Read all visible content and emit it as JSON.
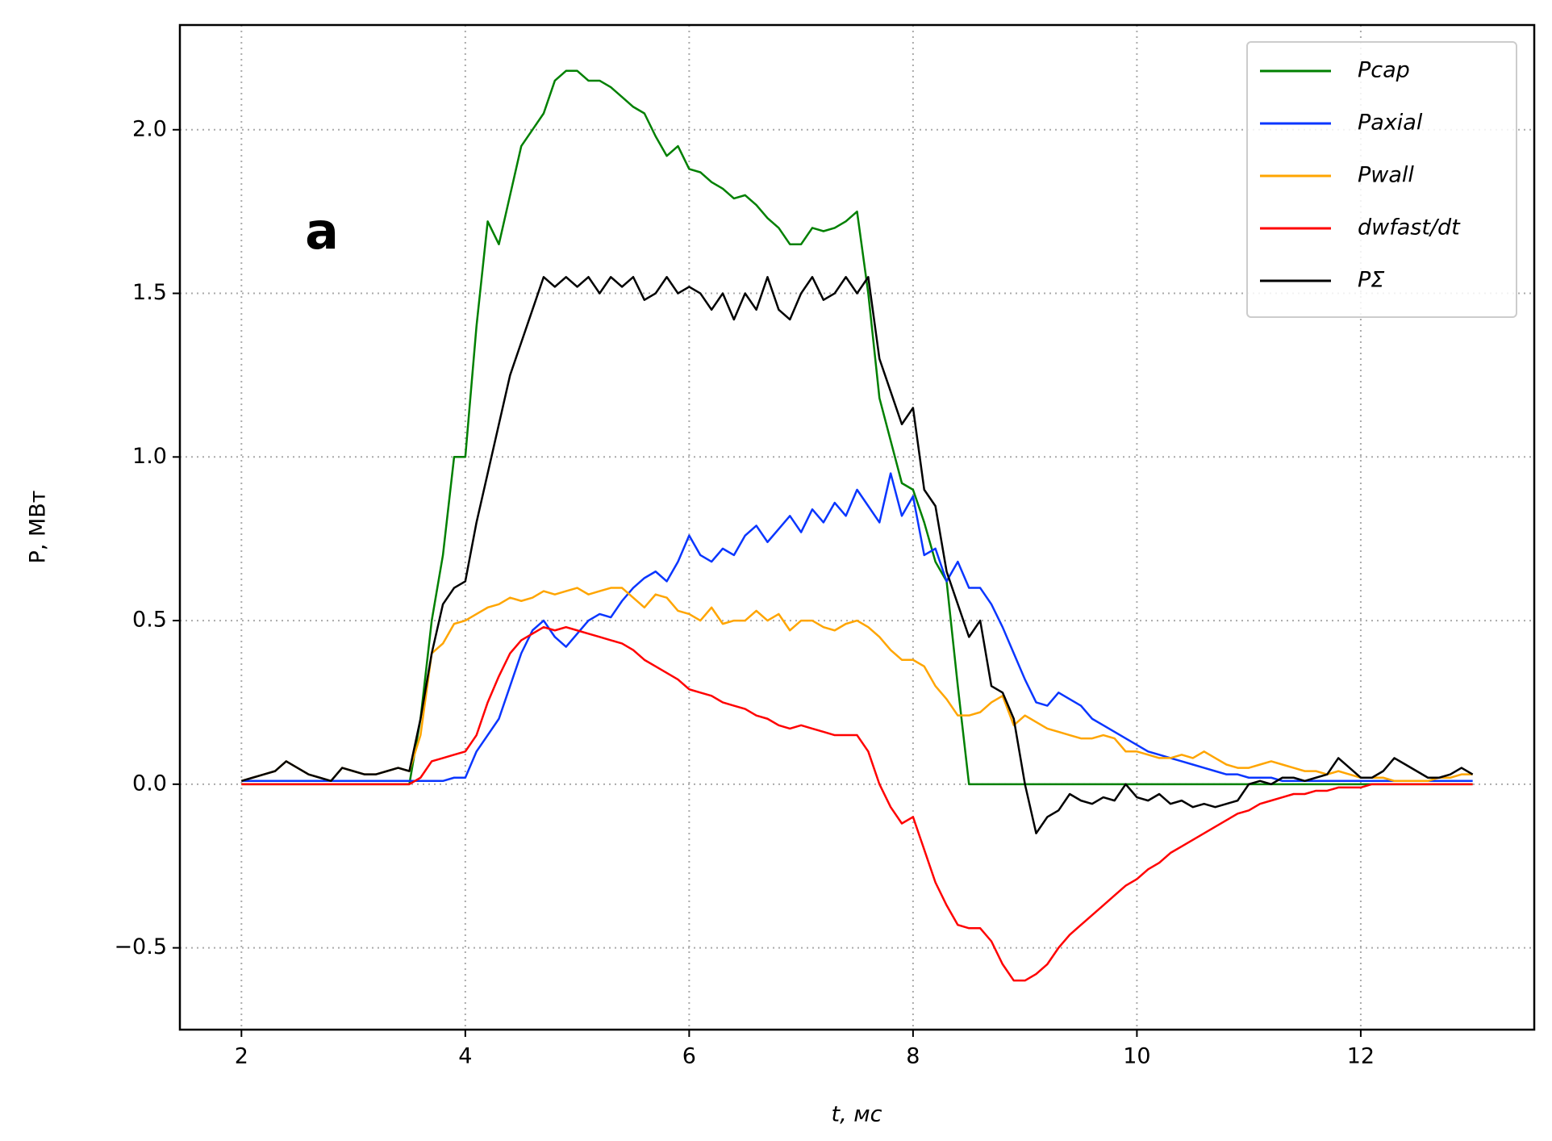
{
  "chart_data": {
    "type": "line",
    "annotation": "a",
    "xlabel": "t, мс",
    "ylabel": "P, МВт",
    "xlim": [
      1.45,
      13.55
    ],
    "ylim": [
      -0.75,
      2.32
    ],
    "xticks": [
      2,
      4,
      6,
      8,
      10,
      12
    ],
    "yticks": [
      {
        "value": -0.5,
        "label": "−0.5"
      },
      {
        "value": 0,
        "label": "0.0"
      },
      {
        "value": 0.5,
        "label": "0.5"
      },
      {
        "value": 1,
        "label": "1.0"
      },
      {
        "value": 1.5,
        "label": "1.5"
      },
      {
        "value": 2,
        "label": "2.0"
      }
    ],
    "grid": true,
    "legend": "upper right",
    "x": [
      2.0,
      2.1,
      2.2,
      2.3,
      2.4,
      2.5,
      2.6,
      2.7,
      2.8,
      2.9,
      3.0,
      3.1,
      3.2,
      3.3,
      3.4,
      3.5,
      3.6,
      3.7,
      3.8,
      3.9,
      4.0,
      4.1,
      4.2,
      4.3,
      4.4,
      4.5,
      4.6,
      4.7,
      4.8,
      4.9,
      5.0,
      5.1,
      5.2,
      5.3,
      5.4,
      5.5,
      5.6,
      5.7,
      5.8,
      5.9,
      6.0,
      6.1,
      6.2,
      6.3,
      6.4,
      6.5,
      6.6,
      6.7,
      6.8,
      6.9,
      7.0,
      7.1,
      7.2,
      7.3,
      7.4,
      7.5,
      7.6,
      7.7,
      7.8,
      7.9,
      8.0,
      8.1,
      8.2,
      8.3,
      8.4,
      8.5,
      8.6,
      8.7,
      8.8,
      8.9,
      9.0,
      9.1,
      9.2,
      9.3,
      9.4,
      9.5,
      9.6,
      9.7,
      9.8,
      9.9,
      10.0,
      10.1,
      10.2,
      10.3,
      10.4,
      10.5,
      10.6,
      10.7,
      10.8,
      10.9,
      11.0,
      11.1,
      11.2,
      11.3,
      11.4,
      11.5,
      11.6,
      11.7,
      11.8,
      11.9,
      12.0,
      12.1,
      12.2,
      12.3,
      12.4,
      12.5,
      12.6,
      12.7,
      12.8,
      12.9,
      13.0
    ],
    "series": [
      {
        "name": "Pcap",
        "color": "#008000",
        "values": [
          0,
          0,
          0,
          0,
          0,
          0,
          0,
          0,
          0,
          0,
          0,
          0,
          0,
          0,
          0,
          0,
          0.2,
          0.5,
          0.7,
          1.0,
          1.0,
          1.4,
          1.72,
          1.65,
          1.8,
          1.95,
          2.0,
          2.05,
          2.15,
          2.18,
          2.18,
          2.15,
          2.15,
          2.13,
          2.1,
          2.07,
          2.05,
          1.98,
          1.92,
          1.95,
          1.88,
          1.87,
          1.84,
          1.82,
          1.79,
          1.8,
          1.77,
          1.73,
          1.7,
          1.65,
          1.65,
          1.7,
          1.69,
          1.7,
          1.72,
          1.75,
          1.5,
          1.18,
          1.05,
          0.92,
          0.9,
          0.8,
          0.68,
          0.62,
          0.3,
          0,
          0,
          0,
          0,
          0,
          0,
          0,
          0,
          0,
          0,
          0,
          0,
          0,
          0,
          0,
          0,
          0,
          0,
          0,
          0,
          0,
          0,
          0,
          0,
          0,
          0,
          0,
          0,
          0,
          0,
          0,
          0,
          0,
          0,
          0,
          0,
          0,
          0,
          0,
          0,
          0,
          0,
          0,
          0,
          0,
          0
        ]
      },
      {
        "name": "Paxial",
        "color": "#0a36ff",
        "values": [
          0.01,
          0.01,
          0.01,
          0.01,
          0.01,
          0.01,
          0.01,
          0.01,
          0.01,
          0.01,
          0.01,
          0.01,
          0.01,
          0.01,
          0.01,
          0.01,
          0.01,
          0.01,
          0.01,
          0.02,
          0.02,
          0.1,
          0.15,
          0.2,
          0.3,
          0.4,
          0.47,
          0.5,
          0.45,
          0.42,
          0.46,
          0.5,
          0.52,
          0.51,
          0.56,
          0.6,
          0.63,
          0.65,
          0.62,
          0.68,
          0.76,
          0.7,
          0.68,
          0.72,
          0.7,
          0.76,
          0.79,
          0.74,
          0.78,
          0.82,
          0.77,
          0.84,
          0.8,
          0.86,
          0.82,
          0.9,
          0.85,
          0.8,
          0.95,
          0.82,
          0.88,
          0.7,
          0.72,
          0.62,
          0.68,
          0.6,
          0.6,
          0.55,
          0.48,
          0.4,
          0.32,
          0.25,
          0.24,
          0.28,
          0.26,
          0.24,
          0.2,
          0.18,
          0.16,
          0.14,
          0.12,
          0.1,
          0.09,
          0.08,
          0.07,
          0.06,
          0.05,
          0.04,
          0.03,
          0.03,
          0.02,
          0.02,
          0.02,
          0.01,
          0.01,
          0.01,
          0.01,
          0.01,
          0.01,
          0.01,
          0.01,
          0.01,
          0.01,
          0.01,
          0.01,
          0.01,
          0.01,
          0.01,
          0.01,
          0.01,
          0.01
        ]
      },
      {
        "name": "Pwall",
        "color": "#ffa500",
        "values": [
          0.01,
          0.02,
          0.03,
          0.04,
          0.07,
          0.05,
          0.03,
          0.02,
          0.01,
          0.05,
          0.04,
          0.03,
          0.03,
          0.04,
          0.05,
          0.04,
          0.15,
          0.4,
          0.43,
          0.49,
          0.5,
          0.52,
          0.54,
          0.55,
          0.57,
          0.56,
          0.57,
          0.59,
          0.58,
          0.59,
          0.6,
          0.58,
          0.59,
          0.6,
          0.6,
          0.57,
          0.54,
          0.58,
          0.57,
          0.53,
          0.52,
          0.5,
          0.54,
          0.49,
          0.5,
          0.5,
          0.53,
          0.5,
          0.52,
          0.47,
          0.5,
          0.5,
          0.48,
          0.47,
          0.49,
          0.5,
          0.48,
          0.45,
          0.41,
          0.38,
          0.38,
          0.36,
          0.3,
          0.26,
          0.21,
          0.21,
          0.22,
          0.25,
          0.27,
          0.18,
          0.21,
          0.19,
          0.17,
          0.16,
          0.15,
          0.14,
          0.14,
          0.15,
          0.14,
          0.1,
          0.1,
          0.09,
          0.08,
          0.08,
          0.09,
          0.08,
          0.1,
          0.08,
          0.06,
          0.05,
          0.05,
          0.06,
          0.07,
          0.06,
          0.05,
          0.04,
          0.04,
          0.03,
          0.04,
          0.03,
          0.02,
          0.02,
          0.02,
          0.01,
          0.01,
          0.01,
          0.01,
          0.02,
          0.02,
          0.03,
          0.03
        ]
      },
      {
        "name": "dwfast/dt",
        "color": "#ff0000",
        "values": [
          0,
          0,
          0,
          0,
          0,
          0,
          0,
          0,
          0,
          0,
          0,
          0,
          0,
          0,
          0,
          0,
          0.02,
          0.07,
          0.08,
          0.09,
          0.1,
          0.15,
          0.25,
          0.33,
          0.4,
          0.44,
          0.46,
          0.48,
          0.47,
          0.48,
          0.47,
          0.46,
          0.45,
          0.44,
          0.43,
          0.41,
          0.38,
          0.36,
          0.34,
          0.32,
          0.29,
          0.28,
          0.27,
          0.25,
          0.24,
          0.23,
          0.21,
          0.2,
          0.18,
          0.17,
          0.18,
          0.17,
          0.16,
          0.15,
          0.15,
          0.15,
          0.1,
          0.0,
          -0.07,
          -0.12,
          -0.1,
          -0.2,
          -0.3,
          -0.37,
          -0.43,
          -0.44,
          -0.44,
          -0.48,
          -0.55,
          -0.6,
          -0.6,
          -0.58,
          -0.55,
          -0.5,
          -0.46,
          -0.43,
          -0.4,
          -0.37,
          -0.34,
          -0.31,
          -0.29,
          -0.26,
          -0.24,
          -0.21,
          -0.19,
          -0.17,
          -0.15,
          -0.13,
          -0.11,
          -0.09,
          -0.08,
          -0.06,
          -0.05,
          -0.04,
          -0.03,
          -0.03,
          -0.02,
          -0.02,
          -0.01,
          -0.01,
          -0.01,
          0,
          0,
          0,
          0,
          0,
          0,
          0,
          0,
          0,
          0
        ]
      },
      {
        "name": "PΣ",
        "color": "#000000",
        "values": [
          0.01,
          0.02,
          0.03,
          0.04,
          0.07,
          0.05,
          0.03,
          0.02,
          0.01,
          0.05,
          0.04,
          0.03,
          0.03,
          0.04,
          0.05,
          0.04,
          0.2,
          0.4,
          0.55,
          0.6,
          0.62,
          0.8,
          0.95,
          1.1,
          1.25,
          1.35,
          1.45,
          1.55,
          1.52,
          1.55,
          1.52,
          1.55,
          1.5,
          1.55,
          1.52,
          1.55,
          1.48,
          1.5,
          1.55,
          1.5,
          1.52,
          1.5,
          1.45,
          1.5,
          1.42,
          1.5,
          1.45,
          1.55,
          1.45,
          1.42,
          1.5,
          1.55,
          1.48,
          1.5,
          1.55,
          1.5,
          1.55,
          1.3,
          1.2,
          1.1,
          1.15,
          0.9,
          0.85,
          0.65,
          0.55,
          0.45,
          0.5,
          0.3,
          0.28,
          0.2,
          0.0,
          -0.15,
          -0.1,
          -0.08,
          -0.03,
          -0.05,
          -0.06,
          -0.04,
          -0.05,
          0.0,
          -0.04,
          -0.05,
          -0.03,
          -0.06,
          -0.05,
          -0.07,
          -0.06,
          -0.07,
          -0.06,
          -0.05,
          0.0,
          0.01,
          0.0,
          0.02,
          0.02,
          0.01,
          0.02,
          0.03,
          0.08,
          0.05,
          0.02,
          0.02,
          0.04,
          0.08,
          0.06,
          0.04,
          0.02,
          0.02,
          0.03,
          0.05,
          0.03
        ]
      }
    ]
  }
}
